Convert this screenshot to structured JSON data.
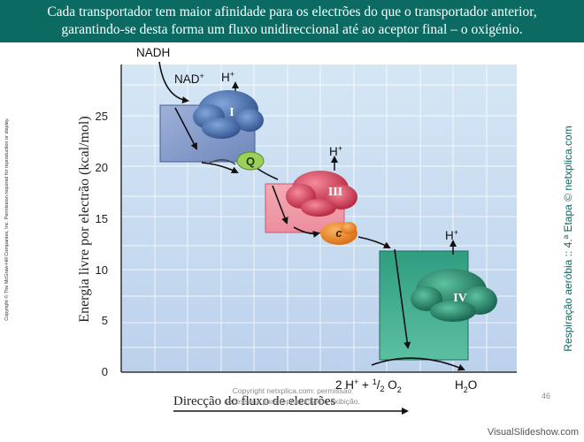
{
  "header": {
    "line1": "Cada transportador tem maior afinidade para os electrões do que o transportador anterior,",
    "line2": "garantindo-se desta forma um fluxo unidireccional até ao aceptor final – o oxigénio."
  },
  "diagram": {
    "y_axis_label": "Energia livre por electrão (kcal/mol)",
    "x_axis_label": "Direcção do fluxo de electrões",
    "y_ticks": [
      "0",
      "5",
      "10",
      "15",
      "20",
      "25"
    ],
    "start_label": "NADH",
    "nad_label": "NAD",
    "nad_sup": "+",
    "h_label": "H",
    "h_sup": "+",
    "complexes": {
      "I": "I",
      "Q": "Q",
      "III": "III",
      "c": "c",
      "IV": "IV"
    },
    "reaction": {
      "left_a": "2 H",
      "plus_sup": "+",
      "left_b": "+ ",
      "half": "1",
      "slash": "/",
      "two": "2",
      "o": " O",
      "o_sub": "2",
      "product": "H",
      "product_sub": "2",
      "product_o": "O"
    }
  },
  "copyright_side": "Copyright © The McGraw-Hill Companies, Inc. Permission required for reproduction or display.",
  "side_caption": "Respiração aeróbia :: 4.ª Etapa © netxplica.com",
  "footer_copyright": {
    "line1": "Copyright netxplica.com: permissão",
    "line2": "necessária para reprodução ou exibição."
  },
  "page_number": "46",
  "watermark": "VisualSlideshow.com",
  "colors": {
    "header": "#0b6b63",
    "complex_i": "#4a6fa8",
    "complex_iii": "#d8405a",
    "complex_iv": "#1f8a70",
    "q": "#9bd05a",
    "c": "#f08a2a"
  }
}
